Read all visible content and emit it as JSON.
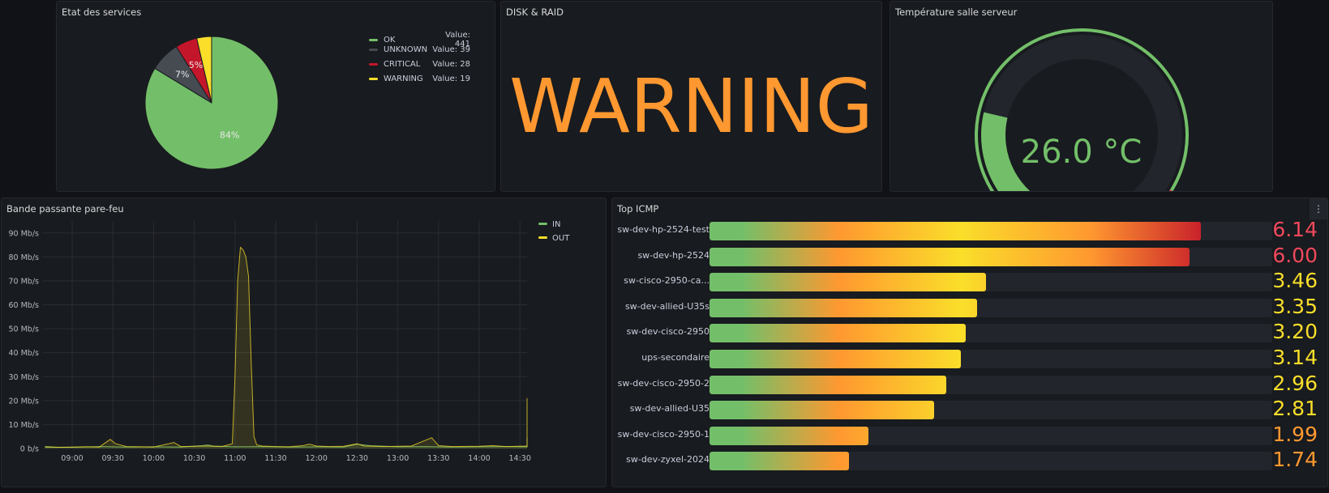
{
  "services": {
    "title": "Etat des services",
    "legend": [
      {
        "name": "OK",
        "value_label": "Value: 441",
        "color": "#73bf69"
      },
      {
        "name": "UNKNOWN",
        "value_label": "Value: 39",
        "color": "#464b52"
      },
      {
        "name": "CRITICAL",
        "value_label": "Value: 28",
        "color": "#c4162a"
      },
      {
        "name": "WARNING",
        "value_label": "Value: 19",
        "color": "#fade2a"
      }
    ],
    "pct_ok": "84%",
    "pct_unknown": "7%",
    "pct_critical": "5%"
  },
  "disk": {
    "title": "DISK & RAID",
    "status": "WARNING",
    "status_color": "#ff9830"
  },
  "temperature": {
    "title": "Température salle serveur",
    "value_label": "26.0 °C",
    "value": 26.0
  },
  "bandwidth": {
    "title": "Bande passante pare-feu"
  },
  "icmp": {
    "title": "Top ICMP",
    "menu_icon": "⋮"
  },
  "chart_data": [
    {
      "type": "pie",
      "title": "Etat des services",
      "categories": [
        "OK",
        "UNKNOWN",
        "CRITICAL",
        "WARNING"
      ],
      "values": [
        441,
        39,
        28,
        19
      ],
      "slice_labels": [
        "84%",
        "7%",
        "5%",
        ""
      ],
      "colors": [
        "#73bf69",
        "#464b52",
        "#c4162a",
        "#fade2a"
      ],
      "legend": "right"
    },
    {
      "type": "line",
      "title": "Bande passante pare-feu",
      "ylim": [
        0,
        95
      ],
      "y_ticks": [
        "0 b/s",
        "10 Mb/s",
        "20 Mb/s",
        "30 Mb/s",
        "40 Mb/s",
        "50 Mb/s",
        "60 Mb/s",
        "70 Mb/s",
        "80 Mb/s",
        "90 Mb/s"
      ],
      "x_ticks": [
        "09:00",
        "09:30",
        "10:00",
        "10:30",
        "11:00",
        "11:30",
        "12:00",
        "12:30",
        "13:00",
        "13:30",
        "14:00",
        "14:30"
      ],
      "grid": true,
      "legend_position": "top-right",
      "series": [
        {
          "name": "IN",
          "color": "#73bf69",
          "points": [
            [
              -20,
              0.5
            ],
            [
              0,
              0.5
            ],
            [
              20,
              0.8
            ],
            [
              40,
              0.6
            ],
            [
              60,
              0.7
            ],
            [
              80,
              0.6
            ],
            [
              96,
              1.2
            ],
            [
              100,
              1.5
            ],
            [
              104,
              1.0
            ],
            [
              120,
              0.7
            ],
            [
              140,
              0.8
            ],
            [
              160,
              0.6
            ],
            [
              180,
              0.7
            ],
            [
              200,
              0.6
            ],
            [
              210,
              1.8
            ],
            [
              220,
              1.2
            ],
            [
              240,
              0.7
            ],
            [
              260,
              0.8
            ],
            [
              280,
              0.6
            ],
            [
              300,
              0.7
            ],
            [
              320,
              0.8
            ],
            [
              340,
              0.7
            ],
            [
              360,
              0.6
            ],
            [
              380,
              0.9
            ],
            [
              395,
              1.5
            ],
            [
              400,
              2.0
            ],
            [
              405,
              1.0
            ],
            [
              420,
              0.7
            ],
            [
              440,
              0.8
            ],
            [
              460,
              0.7
            ],
            [
              480,
              1.2
            ],
            [
              490,
              2.5
            ],
            [
              500,
              1.5
            ],
            [
              510,
              2.0
            ],
            [
              515,
              4.5
            ],
            [
              520,
              1.5
            ],
            [
              540,
              0.8
            ],
            [
              560,
              1.0
            ],
            [
              580,
              0.7
            ],
            [
              600,
              0.6
            ],
            [
              615,
              0.5
            ]
          ]
        },
        {
          "name": "OUT",
          "color": "#fade2a",
          "points": [
            [
              -20,
              0.8
            ],
            [
              -10,
              0.5
            ],
            [
              0,
              0.6
            ],
            [
              10,
              0.7
            ],
            [
              20,
              0.6
            ],
            [
              28,
              3.8
            ],
            [
              32,
              2.0
            ],
            [
              40,
              0.8
            ],
            [
              50,
              0.7
            ],
            [
              60,
              0.6
            ],
            [
              75,
              2.5
            ],
            [
              80,
              0.8
            ],
            [
              100,
              1.0
            ],
            [
              110,
              0.8
            ],
            [
              115,
              1.5
            ],
            [
              118,
              2.0
            ],
            [
              120,
              30
            ],
            [
              122,
              70
            ],
            [
              124,
              84
            ],
            [
              126,
              83
            ],
            [
              128,
              80
            ],
            [
              130,
              72
            ],
            [
              132,
              35
            ],
            [
              134,
              5
            ],
            [
              136,
              1.5
            ],
            [
              140,
              1.0
            ],
            [
              150,
              0.8
            ],
            [
              160,
              0.7
            ],
            [
              170,
              1.2
            ],
            [
              175,
              1.8
            ],
            [
              180,
              1.0
            ],
            [
              190,
              0.8
            ],
            [
              200,
              0.9
            ],
            [
              210,
              2.0
            ],
            [
              215,
              1.0
            ],
            [
              230,
              0.8
            ],
            [
              250,
              1.0
            ],
            [
              265,
              4.5
            ],
            [
              270,
              1.2
            ],
            [
              280,
              0.8
            ],
            [
              300,
              0.9
            ],
            [
              310,
              1.2
            ],
            [
              320,
              0.8
            ],
            [
              340,
              1.0
            ],
            [
              350,
              2.5
            ],
            [
              355,
              2.2
            ],
            [
              360,
              2.0
            ],
            [
              370,
              1.0
            ],
            [
              378,
              7.0
            ],
            [
              382,
              10
            ],
            [
              386,
              6.0
            ],
            [
              392,
              1.5
            ],
            [
              398,
              1.2
            ],
            [
              402,
              1.0
            ],
            [
              410,
              1.5
            ],
            [
              414,
              6.0
            ],
            [
              417,
              21
            ],
            [
              420,
              14
            ],
            [
              423,
              4.0
            ],
            [
              428,
              1.0
            ],
            [
              438,
              1.2
            ],
            [
              442,
              5.0
            ],
            [
              446,
              11
            ],
            [
              450,
              3.0
            ],
            [
              456,
              4.0
            ],
            [
              460,
              8.0
            ],
            [
              464,
              5.0
            ],
            [
              470,
              1.0
            ],
            [
              480,
              0.8
            ],
            [
              500,
              0.7
            ],
            [
              520,
              0.6
            ],
            [
              550,
              0.5
            ],
            [
              580,
              0.6
            ],
            [
              600,
              0.5
            ],
            [
              615,
              0.5
            ]
          ]
        }
      ]
    },
    {
      "type": "bar",
      "title": "Top ICMP",
      "orientation": "horizontal",
      "categories": [
        "sw-dev-hp-2524-test",
        "sw-dev-hp-2524",
        "sw-cisco-2950-ca...",
        "sw-dev-allied-U35s",
        "sw-dev-cisco-2950",
        "ups-secondaire",
        "sw-dev-cisco-2950-2",
        "sw-dev-allied-U35",
        "sw-dev-cisco-2950-1",
        "sw-dev-zyxel-2024"
      ],
      "values": [
        6.14,
        6.0,
        3.46,
        3.35,
        3.2,
        3.14,
        2.96,
        2.81,
        1.99,
        1.74
      ],
      "value_labels": [
        "6.14",
        "6.00",
        "3.46",
        "3.35",
        "3.20",
        "3.14",
        "2.96",
        "2.81",
        "1.99",
        "1.74"
      ],
      "value_colors": [
        "#f2495c",
        "#f2495c",
        "#fade2a",
        "#fade2a",
        "#fade2a",
        "#fade2a",
        "#fade2a",
        "#fade2a",
        "#ff9830",
        "#ff9830"
      ],
      "xlim": [
        0,
        7.3
      ]
    },
    {
      "type": "gauge",
      "title": "Température salle serveur",
      "value": 26.0,
      "unit": "°C",
      "min": 0,
      "max": 100,
      "thresholds": [
        {
          "value": 0,
          "color": "#73bf69"
        },
        {
          "value": 88,
          "color": "#f2495c"
        }
      ]
    }
  ]
}
